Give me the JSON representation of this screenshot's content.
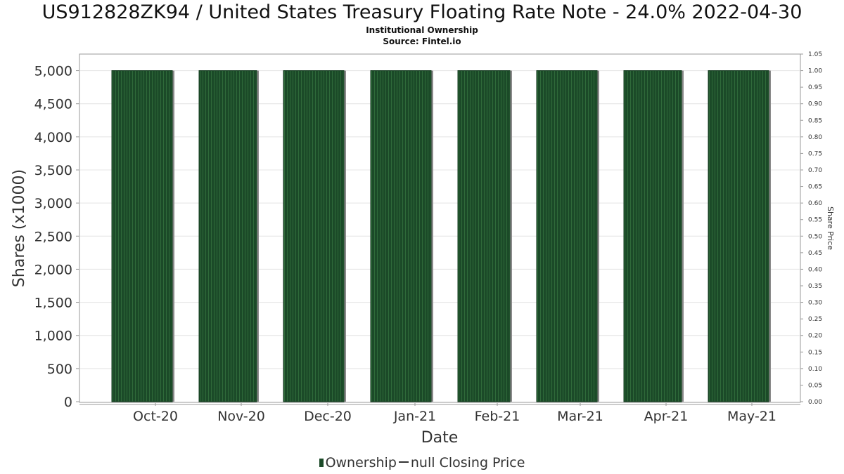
{
  "header": {
    "title": "US912828ZK94 / United States Treasury Floating Rate Note - 24.0% 2022-04-30",
    "subtitle1": "Institutional Ownership",
    "subtitle2": "Source: Fintel.io"
  },
  "legend": {
    "ownership_label": "Ownership",
    "price_label": "null Closing Price"
  },
  "colors": {
    "bar_fill": "#1b4a28",
    "bar_stripe": "#2f6a3a",
    "bar_shadow": "#8a8a8a"
  },
  "chart_data": {
    "type": "bar",
    "categories": [
      "Oct-20",
      "Nov-20",
      "Dec-20",
      "Jan-21",
      "Feb-21",
      "Mar-21",
      "Apr-21",
      "May-21"
    ],
    "series": [
      {
        "name": "Ownership",
        "values": [
          5000,
          5000,
          5000,
          5000,
          5000,
          5000,
          5000,
          5000
        ]
      }
    ],
    "xlabel": "Date",
    "ylabel": "Shares (x1000)",
    "y2label": "Share Price",
    "ylim": [
      0,
      5250
    ],
    "y2lim": [
      0,
      1.05
    ],
    "yticks": [
      "0",
      "500",
      "1,000",
      "1,500",
      "2,000",
      "2,500",
      "3,000",
      "3,500",
      "4,000",
      "4,500",
      "5,000"
    ],
    "y2ticks": [
      "0.00",
      "0.05",
      "0.10",
      "0.15",
      "0.20",
      "0.25",
      "0.30",
      "0.35",
      "0.40",
      "0.45",
      "0.50",
      "0.55",
      "0.60",
      "0.65",
      "0.70",
      "0.75",
      "0.80",
      "0.85",
      "0.90",
      "0.95",
      "1.00",
      "1.05"
    ],
    "grid": true
  }
}
